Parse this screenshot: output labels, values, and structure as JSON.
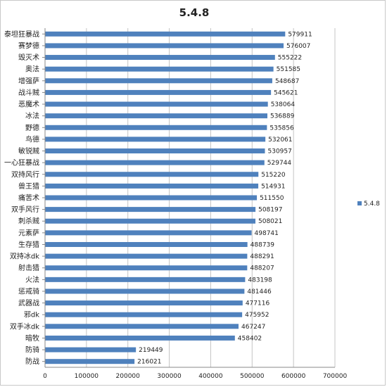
{
  "chart_data": {
    "type": "bar",
    "orientation": "horizontal",
    "title": "5.4.8",
    "categories": [
      "泰坦狂暴战",
      "赛梦德",
      "毁灭术",
      "奥法",
      "增强萨",
      "战斗贼",
      "恶魔术",
      "冰法",
      "野德",
      "鸟德",
      "敏锐贼",
      "一心狂暴战",
      "双持风行",
      "兽王猎",
      "痛苦术",
      "双手风行",
      "刺杀贼",
      "元素萨",
      "生存猎",
      "双持冰dk",
      "射击猎",
      "火法",
      "惩戒骑",
      "武器战",
      "邪dk",
      "双手冰dk",
      "暗牧",
      "防骑",
      "防战"
    ],
    "series": [
      {
        "name": "5.4.8",
        "values": [
          579911,
          576007,
          555222,
          551585,
          548687,
          545621,
          538064,
          536889,
          535856,
          532061,
          530957,
          529744,
          515220,
          514931,
          511550,
          508197,
          508021,
          498741,
          488739,
          488291,
          488207,
          483198,
          481446,
          477116,
          475952,
          467247,
          458402,
          219449,
          216021
        ]
      }
    ],
    "xlim": [
      0,
      700000
    ],
    "xticks": [
      "0",
      "100000",
      "200000",
      "300000",
      "400000",
      "500000",
      "600000",
      "700000"
    ],
    "grid": "vertical",
    "legend_position": "right",
    "bar_color": "#4f81bd"
  }
}
